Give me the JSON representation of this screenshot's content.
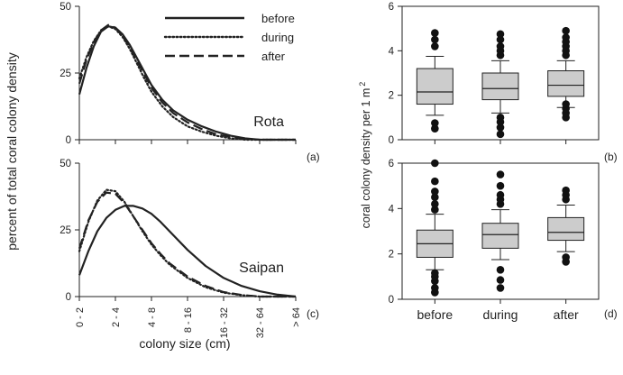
{
  "colors": {
    "line": "#222222",
    "box_fill": "#cccccc",
    "outlier": "#111111"
  },
  "chart_data": [
    {
      "type": "line",
      "panel_label": "(a)",
      "site": "Rota",
      "x_categories": [
        "0 - 2",
        "2 - 4",
        "4 - 8",
        "8 - 16",
        "16 - 32",
        "32 - 64",
        "> 64"
      ],
      "xlabel": "colony size (cm)",
      "ylabel": "percent of total coral colony density",
      "ylim": [
        0,
        50
      ],
      "yticks": [
        0,
        25,
        50
      ],
      "legend_position": "top-right",
      "series": [
        {
          "name": "before",
          "style": "solid",
          "x": [
            0,
            0.2,
            0.4,
            0.6,
            0.8,
            1.0,
            1.2,
            1.4,
            1.6,
            1.8,
            2.0,
            2.3,
            2.6,
            3.0,
            3.4,
            3.8,
            4.2,
            4.6,
            5.0,
            5.5,
            6.0
          ],
          "y": [
            17,
            27,
            35,
            40.5,
            42.5,
            42,
            39.5,
            35.5,
            30.5,
            25.5,
            20.5,
            15,
            11,
            7.5,
            5,
            3,
            1.5,
            0.5,
            0,
            0,
            0
          ]
        },
        {
          "name": "during",
          "style": "dotted",
          "x": [
            0,
            0.2,
            0.4,
            0.6,
            0.8,
            1.0,
            1.2,
            1.4,
            1.6,
            1.8,
            2.0,
            2.3,
            2.6,
            3.0,
            3.4,
            3.8,
            4.2,
            4.6,
            5.0,
            5.5,
            6.0
          ],
          "y": [
            23,
            31,
            37,
            41,
            42.5,
            41.5,
            38.5,
            34,
            28.5,
            23,
            18,
            12.5,
            8.5,
            5,
            3,
            1.5,
            0.5,
            0,
            0,
            0,
            0
          ]
        },
        {
          "name": "after",
          "style": "dashed",
          "x": [
            0,
            0.2,
            0.4,
            0.6,
            0.8,
            1.0,
            1.2,
            1.4,
            1.6,
            1.8,
            2.0,
            2.3,
            2.6,
            3.0,
            3.4,
            3.8,
            4.2,
            4.6,
            5.0,
            5.5,
            6.0
          ],
          "y": [
            21,
            30,
            36.5,
            41,
            43,
            42,
            39,
            34.5,
            29.5,
            24.5,
            19.5,
            14,
            10,
            6.5,
            4,
            2,
            1,
            0.3,
            0,
            0,
            0
          ]
        }
      ]
    },
    {
      "type": "line",
      "panel_label": "(c)",
      "site": "Saipan",
      "x_categories": [
        "0 - 2",
        "2 - 4",
        "4 - 8",
        "8 - 16",
        "16 - 32",
        "32 - 64",
        "> 64"
      ],
      "xlabel": "colony size (cm)",
      "ylabel": "percent of total coral colony density",
      "ylim": [
        0,
        50
      ],
      "yticks": [
        0,
        25,
        50
      ],
      "series": [
        {
          "name": "before",
          "style": "solid",
          "x": [
            0,
            0.25,
            0.5,
            0.75,
            1.0,
            1.25,
            1.5,
            1.75,
            2.0,
            2.25,
            2.5,
            3.0,
            3.5,
            4.0,
            4.5,
            5.0,
            5.5,
            6.0
          ],
          "y": [
            8,
            17,
            24.5,
            29.5,
            32.5,
            34,
            34,
            33,
            31,
            28,
            24.5,
            17.5,
            11.5,
            7,
            4,
            2,
            0.7,
            0
          ]
        },
        {
          "name": "during",
          "style": "dotted",
          "x": [
            0,
            0.25,
            0.5,
            0.75,
            1.0,
            1.25,
            1.5,
            1.75,
            2.0,
            2.25,
            2.5,
            3.0,
            3.5,
            4.0,
            4.5,
            5.0,
            5.5,
            6.0
          ],
          "y": [
            17,
            28,
            36,
            40,
            39.5,
            35.5,
            30,
            24.5,
            19.5,
            15.5,
            12,
            7,
            3.5,
            1.5,
            0.5,
            0,
            0,
            0
          ]
        },
        {
          "name": "after",
          "style": "dashed",
          "x": [
            0,
            0.25,
            0.5,
            0.75,
            1.0,
            1.25,
            1.5,
            1.75,
            2.0,
            2.25,
            2.5,
            3.0,
            3.5,
            4.0,
            4.5,
            5.0,
            5.5,
            6.0
          ],
          "y": [
            18,
            28.5,
            35.5,
            39,
            38.5,
            35,
            30,
            25,
            20,
            16,
            12.5,
            7.5,
            4,
            1.7,
            0.6,
            0,
            0,
            0
          ]
        }
      ]
    },
    {
      "type": "box",
      "panel_label": "(b)",
      "site": "Rota",
      "categories": [
        "before",
        "during",
        "after"
      ],
      "ylabel": "coral colony density per 1 m",
      "ylabel_superscript": "2",
      "ylim": [
        0,
        6
      ],
      "yticks": [
        0,
        2,
        4,
        6
      ],
      "boxes": [
        {
          "category": "before",
          "whisker_low": 1.1,
          "q1": 1.6,
          "median": 2.15,
          "q3": 3.2,
          "whisker_high": 3.75,
          "outliers": [
            0.5,
            0.75,
            4.2,
            4.5,
            4.8
          ]
        },
        {
          "category": "during",
          "whisker_low": 1.2,
          "q1": 1.8,
          "median": 2.3,
          "q3": 3.0,
          "whisker_high": 3.55,
          "outliers": [
            0.25,
            0.55,
            0.8,
            1.0,
            3.8,
            4.0,
            4.2,
            4.5,
            4.75
          ]
        },
        {
          "category": "after",
          "whisker_low": 1.45,
          "q1": 1.95,
          "median": 2.45,
          "q3": 3.1,
          "whisker_high": 3.55,
          "outliers": [
            1.0,
            1.2,
            1.4,
            1.6,
            3.8,
            4.0,
            4.2,
            4.4,
            4.6,
            4.9
          ]
        }
      ]
    },
    {
      "type": "box",
      "panel_label": "(d)",
      "site": "Saipan",
      "categories": [
        "before",
        "during",
        "after"
      ],
      "ylabel": "coral colony density per 1 m",
      "ylabel_superscript": "2",
      "ylim": [
        0,
        6
      ],
      "yticks": [
        0,
        2,
        4,
        6
      ],
      "boxes": [
        {
          "category": "before",
          "whisker_low": 1.3,
          "q1": 1.85,
          "median": 2.45,
          "q3": 3.05,
          "whisker_high": 3.75,
          "outliers": [
            0.3,
            0.5,
            0.8,
            1.0,
            1.15,
            3.95,
            4.2,
            4.5,
            4.75,
            5.2,
            6.0
          ]
        },
        {
          "category": "during",
          "whisker_low": 1.75,
          "q1": 2.25,
          "median": 2.85,
          "q3": 3.35,
          "whisker_high": 3.95,
          "outliers": [
            0.5,
            0.85,
            1.3,
            4.2,
            4.4,
            4.6,
            5.0,
            5.5
          ]
        },
        {
          "category": "after",
          "whisker_low": 2.1,
          "q1": 2.6,
          "median": 2.95,
          "q3": 3.6,
          "whisker_high": 4.15,
          "outliers": [
            1.65,
            1.85,
            4.4,
            4.6,
            4.8
          ]
        }
      ]
    }
  ]
}
